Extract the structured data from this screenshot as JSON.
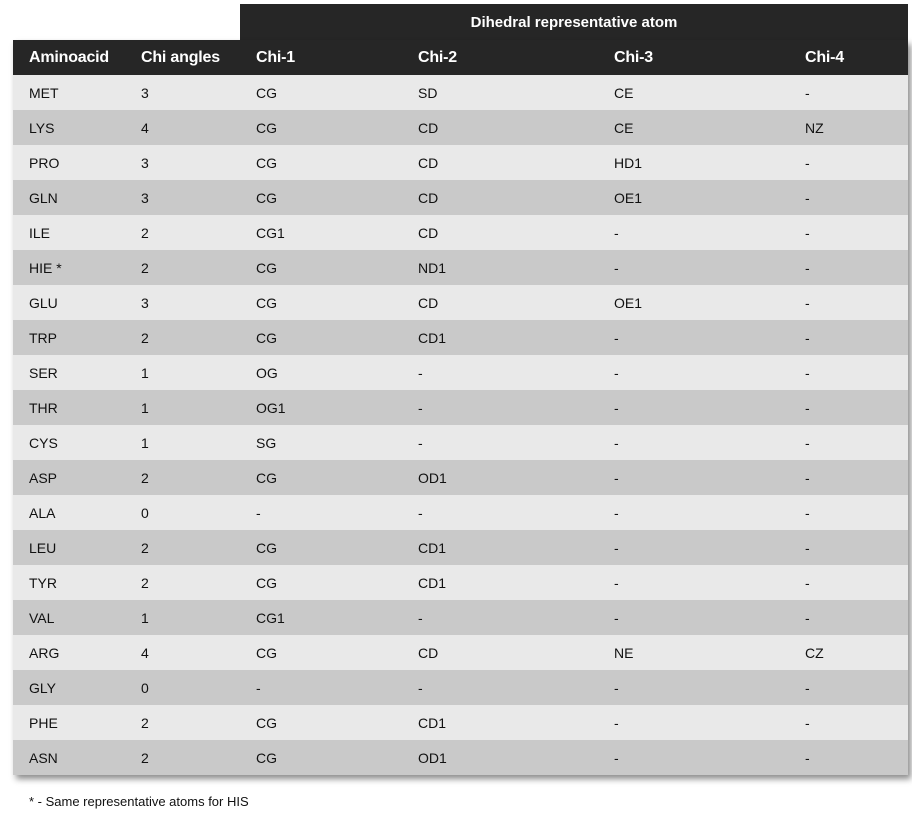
{
  "group_header": "Dihedral representative atom",
  "columns": [
    "Aminoacid",
    "Chi angles",
    "Chi-1",
    "Chi-2",
    "Chi-3",
    "Chi-4"
  ],
  "rows": [
    [
      "MET",
      "3",
      "CG",
      "SD",
      "CE",
      "-"
    ],
    [
      "LYS",
      "4",
      "CG",
      "CD",
      "CE",
      "NZ"
    ],
    [
      "PRO",
      "3",
      "CG",
      "CD",
      "HD1",
      "-"
    ],
    [
      "GLN",
      "3",
      "CG",
      "CD",
      "OE1",
      "-"
    ],
    [
      "ILE",
      "2",
      "CG1",
      "CD",
      "-",
      "-"
    ],
    [
      "HIE *",
      "2",
      "CG",
      "ND1",
      "-",
      "-"
    ],
    [
      "GLU",
      "3",
      "CG",
      "CD",
      "OE1",
      "-"
    ],
    [
      "TRP",
      "2",
      "CG",
      "CD1",
      "-",
      "-"
    ],
    [
      "SER",
      "1",
      "OG",
      "-",
      "-",
      "-"
    ],
    [
      "THR",
      "1",
      "OG1",
      "-",
      "-",
      "-"
    ],
    [
      "CYS",
      "1",
      "SG",
      "-",
      "-",
      "-"
    ],
    [
      "ASP",
      "2",
      "CG",
      "OD1",
      "-",
      "-"
    ],
    [
      "ALA",
      "0",
      "-",
      "-",
      "-",
      "-"
    ],
    [
      "LEU",
      "2",
      "CG",
      "CD1",
      "-",
      "-"
    ],
    [
      "TYR",
      "2",
      "CG",
      "CD1",
      "-",
      "-"
    ],
    [
      "VAL",
      "1",
      "CG1",
      "-",
      "-",
      "-"
    ],
    [
      "ARG",
      "4",
      "CG",
      "CD",
      "NE",
      "CZ"
    ],
    [
      "GLY",
      "0",
      "-",
      "-",
      "-",
      "-"
    ],
    [
      "PHE",
      "2",
      "CG",
      "CD1",
      "-",
      "-"
    ],
    [
      "ASN",
      "2",
      "CG",
      "OD1",
      "-",
      "-"
    ]
  ],
  "footnote": "* - Same representative atoms for HIS",
  "colors": {
    "header_bg": "#262626",
    "row_light": "#e9e9e9",
    "row_dark": "#c9c9c9"
  }
}
